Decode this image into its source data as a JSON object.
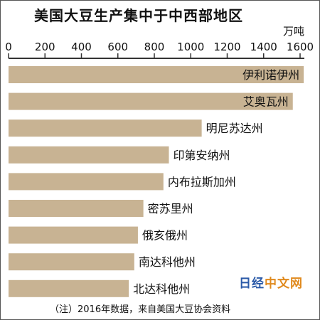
{
  "chart_data": {
    "type": "bar",
    "orientation": "horizontal",
    "title": "美国大豆生产集中于中西部地区",
    "unit": "万吨",
    "categories": [
      "伊利诺伊州",
      "艾奥瓦州",
      "明尼苏达州",
      "印第安纳州",
      "内布拉斯加州",
      "密苏里州",
      "俄亥俄州",
      "南达科他州",
      "北达科他州"
    ],
    "values": [
      1620,
      1560,
      1060,
      880,
      850,
      740,
      710,
      690,
      660
    ],
    "xlim": [
      0,
      1600
    ],
    "xticks": [
      "0",
      "200",
      "400",
      "600",
      "800",
      "1000",
      "1200",
      "1400",
      "1600"
    ],
    "note": "（注）2016年数据，来自美国大豆协会资料",
    "bar_color": "#c8b393"
  },
  "watermark": {
    "part1": "日经",
    "part2": "中文网"
  }
}
